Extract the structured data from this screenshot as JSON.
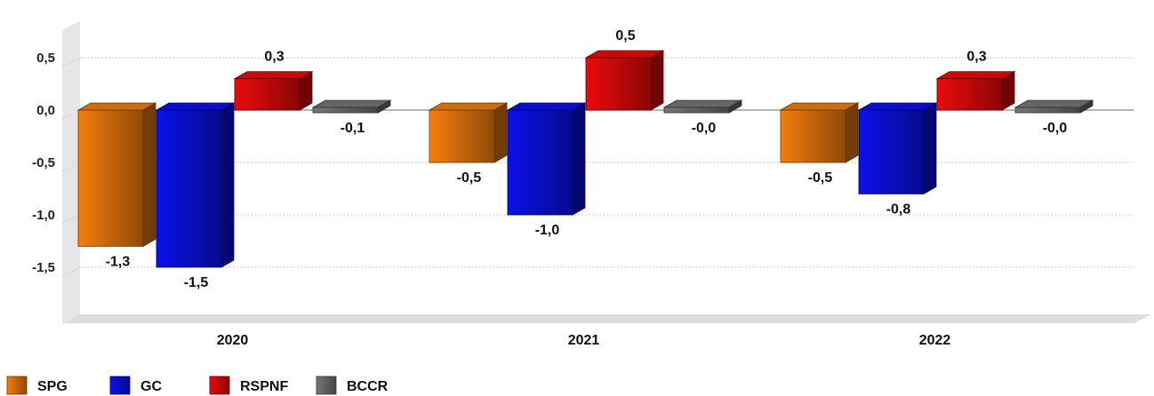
{
  "chart_data": {
    "type": "bar",
    "categories": [
      "2020",
      "2021",
      "2022"
    ],
    "series": [
      {
        "name": "SPG",
        "values": [
          -1.3,
          -0.5,
          -0.5
        ],
        "labels": [
          "-1,3",
          "-0,5",
          "-0,5"
        ],
        "color": "#e8780c"
      },
      {
        "name": "GC",
        "values": [
          -1.5,
          -1.0,
          -0.8
        ],
        "labels": [
          "-1,5",
          "-1,0",
          "-0,8"
        ],
        "color": "#0a10e0"
      },
      {
        "name": "RSPNF",
        "values": [
          0.3,
          0.5,
          0.3
        ],
        "labels": [
          "0,3",
          "0,5",
          "0,3"
        ],
        "color": "#e00a0a"
      },
      {
        "name": "BCCR",
        "values": [
          -0.05,
          -0.03,
          -0.02
        ],
        "labels": [
          "-0,1",
          "-0,0",
          "-0,0"
        ],
        "color": "#707070"
      }
    ],
    "yticks": [
      0.5,
      0.0,
      -0.5,
      -1.0,
      -1.5
    ],
    "ytick_labels": [
      "0,5",
      "0,0",
      "-0,5",
      "-1,0",
      "-1,5"
    ],
    "ylim": [
      -1.95,
      0.85
    ],
    "grid": true,
    "legend_position": "bottom-left",
    "title": "",
    "xlabel": "",
    "ylabel": ""
  }
}
